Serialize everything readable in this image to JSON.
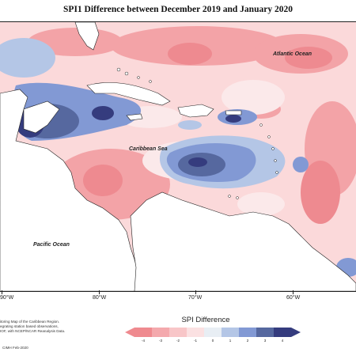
{
  "title": "SPI1 Difference between December 2019 and January 2020",
  "labels": {
    "atlantic": "Atlantic Ocean",
    "caribbean": "Caribbean Sea",
    "pacific": "Pacific Ocean"
  },
  "longitudes": [
    "90°W",
    "80°W",
    "70°W",
    "60°W"
  ],
  "credit": {
    "line1": "itoring Map of the Caribbean Region.",
    "line2": "egrating station based observations,",
    "line3": "IOF, with NCEP/NCAR Reanalysis Data.",
    "line4": "CIMH Feb-2020"
  },
  "legend": {
    "title": "SPI Difference",
    "ticks": [
      "-4",
      "-3",
      "-2",
      "-1",
      "0",
      "1",
      "2",
      "3",
      "4"
    ],
    "colors": [
      "#ef8a8f",
      "#f4a9ad",
      "#f8c6c8",
      "#fbe1e2",
      "#e8eef4",
      "#b4c6e6",
      "#8299d4",
      "#56689f",
      "#353c7e"
    ]
  }
}
